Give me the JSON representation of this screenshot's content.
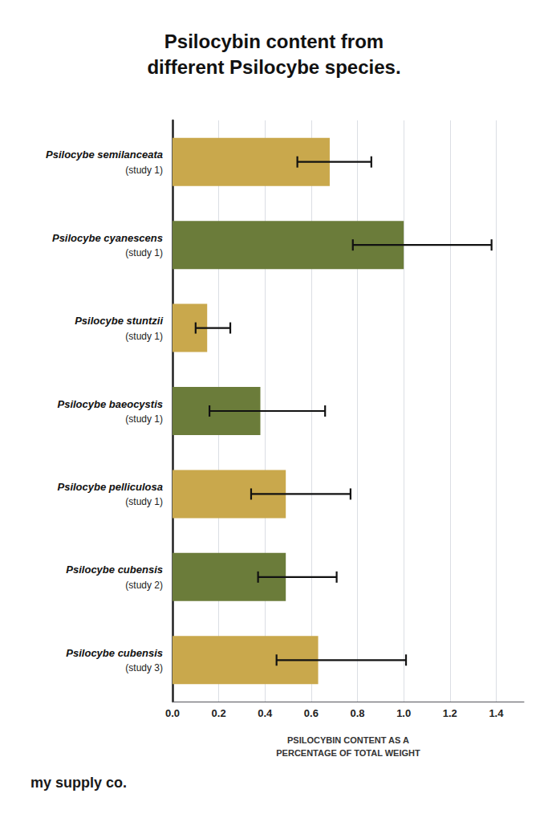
{
  "chart_data": {
    "type": "bar",
    "orientation": "horizontal",
    "title": "Psilocybin content from\ndifferent Psilocybe species.",
    "xlabel": "PSILOCYBIN CONTENT AS A\nPERCENTAGE OF TOTAL WEIGHT",
    "categories": [
      "Psilocybe semilanceata\n(study 1)",
      "Psilocybe cyanescens\n(study 1)",
      "Psilocybe stuntzii\n(study 1)",
      "Psilocybe baeocystis\n(study 1)",
      "Psilocybe pelliculosa\n(study 1)",
      "Psilocybe cubensis\n(study 2)",
      "Psilocybe cubensis\n(study 3)"
    ],
    "values": [
      0.68,
      1.0,
      0.15,
      0.38,
      0.49,
      0.49,
      0.63
    ],
    "error_low": [
      0.14,
      0.22,
      0.05,
      0.22,
      0.15,
      0.12,
      0.18
    ],
    "error_high": [
      0.18,
      0.38,
      0.1,
      0.28,
      0.28,
      0.22,
      0.38
    ],
    "colors": [
      "#C9A84C",
      "#6B7C3A",
      "#C9A84C",
      "#6B7C3A",
      "#C9A84C",
      "#6B7C3A",
      "#C9A84C"
    ],
    "xlim": [
      0.0,
      1.52
    ],
    "xticks": [
      {
        "value": 0,
        "label": "0.0"
      },
      0.2,
      0.4,
      0.6,
      0.8,
      {
        "value": 1,
        "label": "1.0"
      },
      1.2,
      1.4
    ],
    "grid": true,
    "annotations": [
      "my",
      "supply",
      "co."
    ]
  }
}
